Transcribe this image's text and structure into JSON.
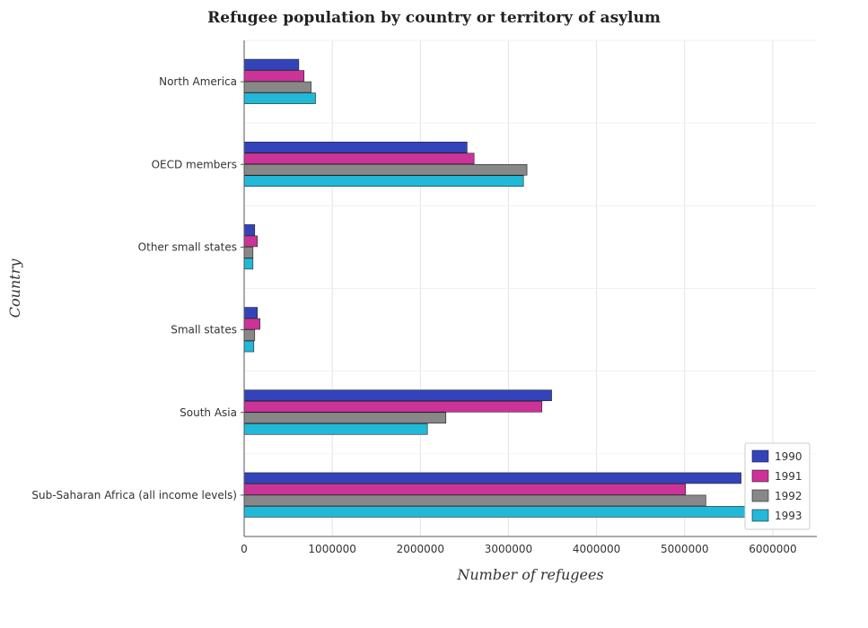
{
  "chart_data": {
    "type": "bar",
    "orientation": "horizontal",
    "title": "Refugee population by country or territory of asylum",
    "xlabel": "Number of refugees",
    "ylabel": "Country",
    "categories": [
      "North America",
      "OECD members",
      "Other small states",
      "Small states",
      "South Asia",
      "Sub-Saharan Africa (all income levels)"
    ],
    "series": [
      {
        "name": "1990",
        "color": "#3344bb",
        "values": [
          620000,
          2530000,
          120000,
          150000,
          3490000,
          5640000
        ]
      },
      {
        "name": "1991",
        "color": "#cc3399",
        "values": [
          680000,
          2610000,
          150000,
          180000,
          3380000,
          5010000
        ]
      },
      {
        "name": "1992",
        "color": "#888888",
        "values": [
          760000,
          3210000,
          100000,
          120000,
          2290000,
          5240000
        ]
      },
      {
        "name": "1993",
        "color": "#22b8d8",
        "values": [
          810000,
          3170000,
          100000,
          110000,
          2080000,
          6160000
        ]
      }
    ],
    "xlim": [
      0,
      6500000
    ],
    "xticks": [
      0,
      1000000,
      2000000,
      3000000,
      4000000,
      5000000,
      6000000
    ],
    "xtick_labels": [
      "0",
      "1000000",
      "2000000",
      "3000000",
      "4000000",
      "5000000",
      "6000000"
    ],
    "grid": true,
    "legend_position": "bottom-right"
  }
}
